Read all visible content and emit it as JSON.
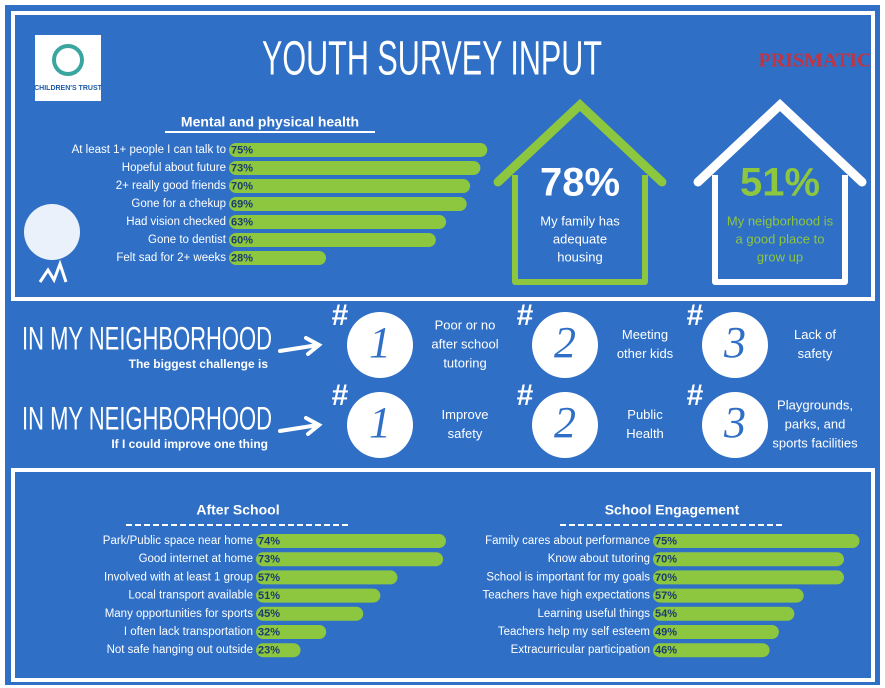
{
  "header": {
    "title": "YOUTH SURVEY INPUT",
    "left_logo": "CHILDREN'S TRUST",
    "right_logo": "PRISMATIC"
  },
  "chart_data": [
    {
      "type": "bar",
      "orientation": "horizontal",
      "title": "Mental and physical health",
      "color": "#8dc63f",
      "categories": [
        "At least 1+ people I can talk to",
        "Hopeful about future",
        "2+ really good friends",
        "Gone for a chekup",
        "Had vision checked",
        "Gone to dentist",
        "Felt sad  for 2+ weeks"
      ],
      "values": [
        75,
        73,
        70,
        69,
        63,
        60,
        28
      ],
      "value_labels": [
        "75%",
        "73%",
        "70%",
        "69%",
        "63%",
        "60%",
        "28%"
      ]
    },
    {
      "type": "bar",
      "orientation": "horizontal",
      "title": "After School",
      "color": "#8dc63f",
      "categories": [
        "Park/Public space near home",
        "Good internet at home",
        "Involved with at least 1 group",
        "Local transport available",
        "Many opportunities for sports",
        "I often lack transportation",
        "Not safe hanging out outside"
      ],
      "values": [
        74,
        73,
        57,
        51,
        45,
        32,
        23
      ],
      "value_labels": [
        "74%",
        "73%",
        "57%",
        "51%",
        "45%",
        "32%",
        "23%"
      ]
    },
    {
      "type": "bar",
      "orientation": "horizontal",
      "title": "School Engagement",
      "color": "#8dc63f",
      "categories": [
        "Family cares about performance",
        "Know about tutoring",
        "School is important for my goals",
        "Teachers have high expectations",
        "Learning useful things",
        "Teachers help my self esteem",
        "Extracurricular participation"
      ],
      "values": [
        75,
        70,
        70,
        57,
        54,
        49,
        46
      ],
      "value_labels": [
        "75%",
        "70%",
        "70%",
        "57%",
        "54%",
        "49%",
        "46%"
      ]
    }
  ],
  "highlights": [
    {
      "stat": "78%",
      "lines": [
        "My family has",
        "adequate",
        "housing"
      ]
    },
    {
      "stat": "51%",
      "lines": [
        "My neigborhood is",
        "a good place to",
        "grow up"
      ]
    }
  ],
  "neighborhood": [
    {
      "heading": "IN MY NEIGHBORHOOD",
      "subheading": "The biggest challenge is",
      "items": [
        {
          "hash": "#",
          "rank": "1",
          "lines": [
            "Poor or no",
            "after school",
            "tutoring"
          ]
        },
        {
          "hash": "#",
          "rank": "2",
          "lines": [
            "Meeting",
            "other kids"
          ]
        },
        {
          "hash": "#",
          "rank": "3",
          "lines": [
            "Lack of",
            "safety"
          ]
        }
      ]
    },
    {
      "heading": "IN MY NEIGHBORHOOD",
      "subheading": "If I could improve one thing",
      "items": [
        {
          "hash": "#",
          "rank": "1",
          "lines": [
            "Improve",
            "safety"
          ]
        },
        {
          "hash": "#",
          "rank": "2",
          "lines": [
            "Public",
            "Health"
          ]
        },
        {
          "hash": "#",
          "rank": "3",
          "lines": [
            "Playgrounds,",
            "parks, and",
            "sports facilities"
          ]
        }
      ]
    }
  ]
}
